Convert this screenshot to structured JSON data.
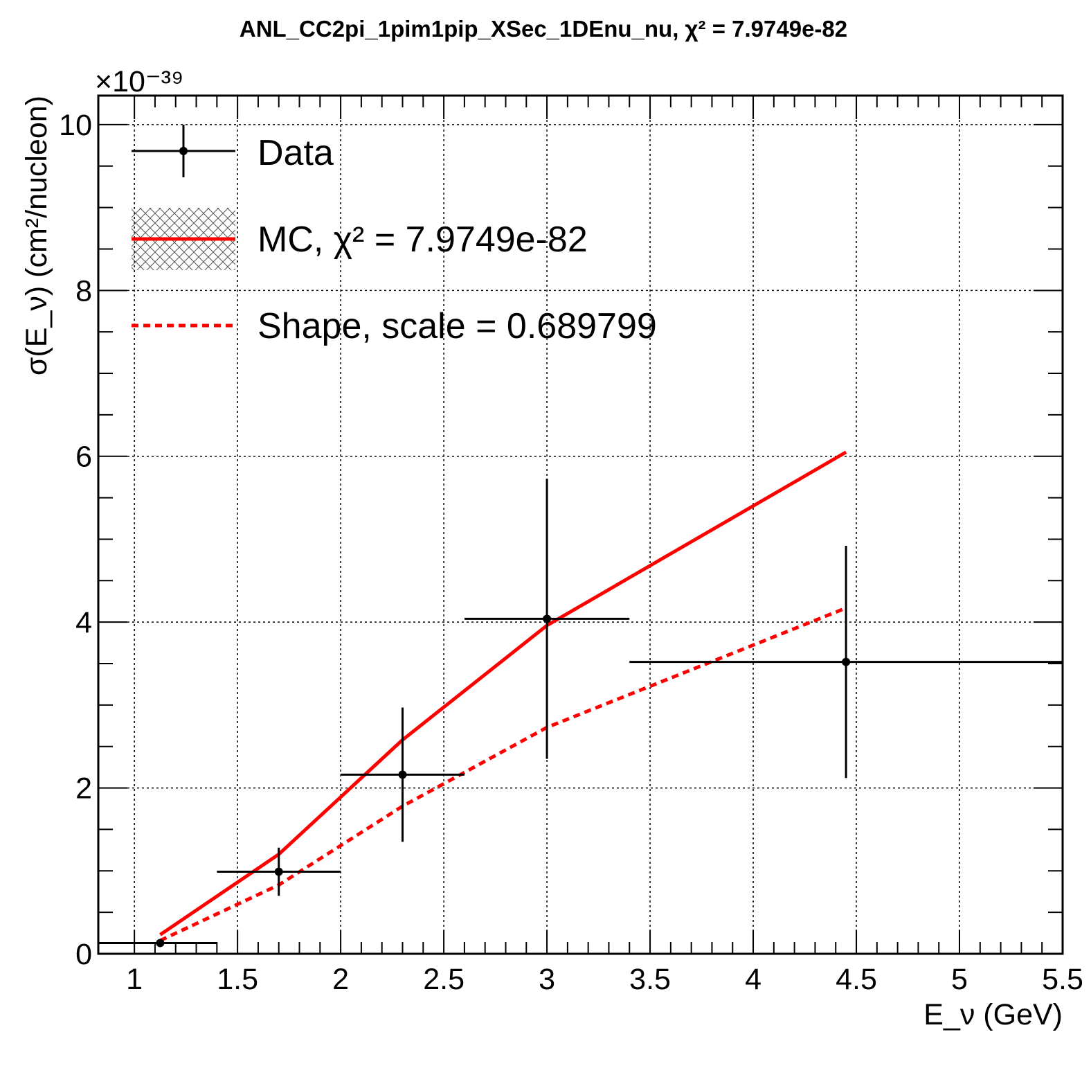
{
  "chart_data": {
    "type": "scatter",
    "title": "ANL_CC2pi_1pim1pip_XSec_1DEnu_nu, χ² = 7.9749e-82",
    "xlabel": "E_ν (GeV)",
    "ylabel": "σ(E_ν) (cm²/nucleon)",
    "y_multiplier": "×10⁻³⁹",
    "xlim": [
      0.825,
      5.5
    ],
    "ylim": [
      0,
      10.35
    ],
    "x_ticks": [
      "1",
      "1.5",
      "2",
      "2.5",
      "3",
      "3.5",
      "4",
      "4.5",
      "5",
      "5.5"
    ],
    "y_ticks": [
      "0",
      "2",
      "4",
      "6",
      "8",
      "10"
    ],
    "grid": true,
    "legend_position": "top-left",
    "series": [
      {
        "name": "Data",
        "kind": "points-with-errors",
        "color": "#000000",
        "points": [
          {
            "x": 1.125,
            "y": 0.13,
            "xlo": 0.825,
            "xhi": 1.4,
            "ylo": 0.13,
            "yhi": 0.13
          },
          {
            "x": 1.7,
            "y": 0.99,
            "xlo": 1.4,
            "xhi": 2.0,
            "ylo": 0.7,
            "yhi": 1.28
          },
          {
            "x": 2.3,
            "y": 2.16,
            "xlo": 2.0,
            "xhi": 2.6,
            "ylo": 1.35,
            "yhi": 2.97
          },
          {
            "x": 3.0,
            "y": 4.04,
            "xlo": 2.6,
            "xhi": 3.4,
            "ylo": 2.35,
            "yhi": 5.73
          },
          {
            "x": 4.45,
            "y": 3.52,
            "xlo": 3.4,
            "xhi": 5.5,
            "ylo": 2.12,
            "yhi": 4.92
          }
        ]
      },
      {
        "name": "MC, χ² = 7.9749e-82",
        "kind": "line",
        "color": "#ff0000",
        "x": [
          1.125,
          1.7,
          2.3,
          3.0,
          4.45
        ],
        "y": [
          0.23,
          1.2,
          2.58,
          3.96,
          6.05
        ]
      },
      {
        "name": "Shape, scale = 0.689799",
        "kind": "dashed-line",
        "color": "#ff0000",
        "x": [
          1.125,
          1.7,
          2.3,
          3.0,
          4.45
        ],
        "y": [
          0.16,
          0.83,
          1.78,
          2.73,
          4.17
        ]
      }
    ]
  }
}
